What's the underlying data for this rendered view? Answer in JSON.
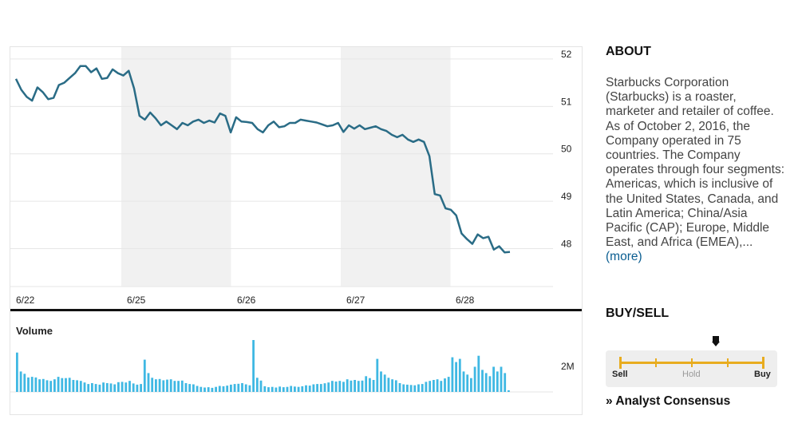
{
  "chart_data": [
    {
      "type": "line",
      "series": [
        {
          "values": [
            [
              "6/22",
              51.48
            ],
            [
              "6/22",
              51.25
            ],
            [
              "6/22",
              51.1
            ],
            [
              "6/22",
              51.02
            ],
            [
              "6/22",
              51.3
            ],
            [
              "6/22",
              51.2
            ],
            [
              "6/22",
              51.05
            ],
            [
              "6/22",
              51.08
            ],
            [
              "6/22",
              51.35
            ],
            [
              "6/22",
              51.4
            ],
            [
              "6/22",
              51.5
            ],
            [
              "6/22",
              51.6
            ],
            [
              "6/22",
              51.75
            ],
            [
              "6/22",
              51.75
            ],
            [
              "6/22",
              51.62
            ],
            [
              "6/22",
              51.7
            ],
            [
              "6/22",
              51.48
            ],
            [
              "6/22",
              51.5
            ],
            [
              "6/22",
              51.68
            ],
            [
              "6/22",
              51.6
            ],
            [
              "6/22",
              51.55
            ],
            [
              "6/22",
              51.65
            ],
            [
              "6/25",
              51.28
            ],
            [
              "6/25",
              50.7
            ],
            [
              "6/25",
              50.62
            ],
            [
              "6/25",
              50.77
            ],
            [
              "6/25",
              50.65
            ],
            [
              "6/25",
              50.5
            ],
            [
              "6/25",
              50.58
            ],
            [
              "6/25",
              50.5
            ],
            [
              "6/25",
              50.42
            ],
            [
              "6/25",
              50.55
            ],
            [
              "6/25",
              50.5
            ],
            [
              "6/25",
              50.58
            ],
            [
              "6/25",
              50.62
            ],
            [
              "6/25",
              50.55
            ],
            [
              "6/25",
              50.6
            ],
            [
              "6/25",
              50.56
            ],
            [
              "6/25",
              50.75
            ],
            [
              "6/25",
              50.7
            ],
            [
              "6/26",
              50.35
            ],
            [
              "6/26",
              50.67
            ],
            [
              "6/26",
              50.58
            ],
            [
              "6/26",
              50.57
            ],
            [
              "6/26",
              50.55
            ],
            [
              "6/26",
              50.42
            ],
            [
              "6/26",
              50.35
            ],
            [
              "6/26",
              50.5
            ],
            [
              "6/26",
              50.58
            ],
            [
              "6/26",
              50.46
            ],
            [
              "6/26",
              50.48
            ],
            [
              "6/26",
              50.55
            ],
            [
              "6/26",
              50.55
            ],
            [
              "6/26",
              50.62
            ],
            [
              "6/26",
              50.6
            ],
            [
              "6/26",
              50.58
            ],
            [
              "6/26",
              50.56
            ],
            [
              "6/26",
              50.52
            ],
            [
              "6/26",
              50.48
            ],
            [
              "6/26",
              50.5
            ],
            [
              "6/27",
              50.55
            ],
            [
              "6/27",
              50.36
            ],
            [
              "6/27",
              50.5
            ],
            [
              "6/27",
              50.43
            ],
            [
              "6/27",
              50.5
            ],
            [
              "6/27",
              50.42
            ],
            [
              "6/27",
              50.45
            ],
            [
              "6/27",
              50.48
            ],
            [
              "6/27",
              50.42
            ],
            [
              "6/27",
              50.38
            ],
            [
              "6/27",
              50.3
            ],
            [
              "6/27",
              50.25
            ],
            [
              "6/27",
              50.3
            ],
            [
              "6/27",
              50.2
            ],
            [
              "6/27",
              50.15
            ],
            [
              "6/27",
              50.2
            ],
            [
              "6/27",
              50.15
            ],
            [
              "6/28",
              49.85
            ],
            [
              "6/28",
              49.05
            ],
            [
              "6/28",
              49.02
            ],
            [
              "6/28",
              48.75
            ],
            [
              "6/28",
              48.72
            ],
            [
              "6/28",
              48.6
            ],
            [
              "6/28",
              48.22
            ],
            [
              "6/28",
              48.1
            ],
            [
              "6/28",
              48.0
            ],
            [
              "6/28",
              48.2
            ],
            [
              "6/28",
              48.12
            ],
            [
              "6/28",
              48.15
            ],
            [
              "6/28",
              47.88
            ],
            [
              "6/28",
              47.95
            ],
            [
              "6/28",
              47.82
            ],
            [
              "6/28",
              47.83
            ]
          ]
        }
      ],
      "x_tick_labels": [
        "6/22",
        "6/25",
        "6/26",
        "6/27",
        "6/28"
      ],
      "y_tick_labels": [
        "52",
        "51",
        "50",
        "49",
        "48"
      ],
      "ylim": [
        47.1,
        52.15
      ],
      "shaded_days": [
        "6/25",
        "6/27"
      ],
      "grid": true,
      "line_color": "#2a6c86"
    },
    {
      "type": "bar",
      "title": "Volume",
      "y_tick_labels": [
        "2M"
      ],
      "values": [
        2.5,
        1.3,
        1.15,
        0.92,
        0.96,
        0.92,
        0.8,
        0.82,
        0.74,
        0.7,
        0.8,
        0.96,
        0.88,
        0.88,
        0.9,
        0.76,
        0.74,
        0.7,
        0.6,
        0.5,
        0.56,
        0.5,
        0.46,
        0.6,
        0.56,
        0.54,
        0.48,
        0.62,
        0.64,
        0.6,
        0.7,
        0.54,
        0.46,
        0.5,
        2.05,
        1.2,
        0.9,
        0.8,
        0.82,
        0.74,
        0.78,
        0.8,
        0.7,
        0.7,
        0.72,
        0.56,
        0.5,
        0.48,
        0.38,
        0.32,
        0.28,
        0.3,
        0.26,
        0.32,
        0.38,
        0.36,
        0.4,
        0.46,
        0.5,
        0.52,
        0.56,
        0.48,
        0.42,
        3.3,
        0.9,
        0.72,
        0.36,
        0.3,
        0.32,
        0.28,
        0.34,
        0.3,
        0.32,
        0.38,
        0.34,
        0.32,
        0.36,
        0.42,
        0.4,
        0.48,
        0.5,
        0.5,
        0.55,
        0.6,
        0.7,
        0.66,
        0.7,
        0.64,
        0.8,
        0.72,
        0.76,
        0.7,
        0.72,
        1.0,
        0.88,
        0.76,
        2.1,
        1.3,
        1.1,
        0.9,
        0.8,
        0.74,
        0.56,
        0.48,
        0.46,
        0.44,
        0.42,
        0.48,
        0.5,
        0.64,
        0.7,
        0.76,
        0.8,
        0.7,
        0.86,
        0.96,
        2.2,
        1.9,
        2.1,
        1.3,
        1.1,
        0.88,
        1.6,
        2.3,
        1.4,
        1.2,
        1.0,
        1.6,
        1.3,
        1.6,
        1.2,
        0.1
      ],
      "ylim": [
        0,
        3.4
      ],
      "bar_color": "#3fb8e3"
    }
  ],
  "about": {
    "heading": "ABOUT",
    "text": "Starbucks Corporation (Starbucks) is a roaster, marketer and retailer of coffee. As of October 2, 2016, the Company operated in 75 countries. The Company operates through four segments: Americas, which is inclusive of the United States, Canada, and Latin America; China/Asia Pacific (CAP); Europe, Middle East, and Africa (EMEA),...",
    "more_link": "(more)"
  },
  "buysell": {
    "heading": "BUY/SELL",
    "labels": {
      "sell": "Sell",
      "hold": "Hold",
      "buy": "Buy"
    },
    "rating_position": 0.68,
    "track_color": "#e8ac1f",
    "analyst_link": "» Analyst Consensus"
  }
}
